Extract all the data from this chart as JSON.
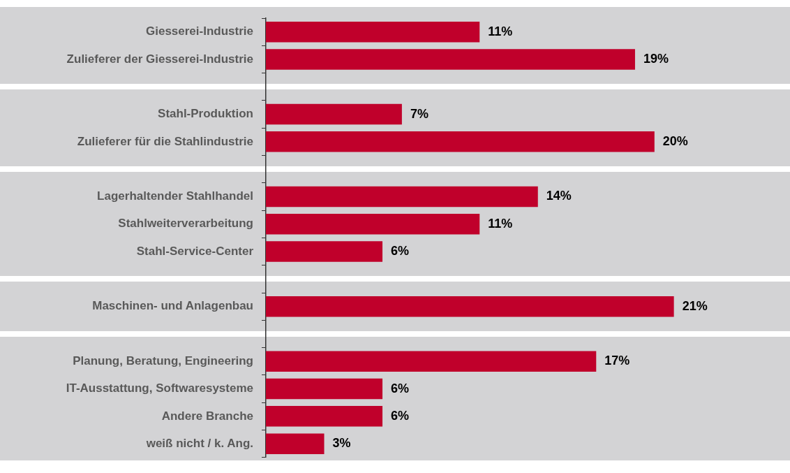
{
  "chart_data": {
    "type": "bar",
    "orientation": "horizontal",
    "categories": [
      "Giesserei-Industrie",
      "Zulieferer der Giesserei-Industrie",
      null,
      "Stahl-Produktion",
      "Zulieferer für die Stahlindustrie",
      null,
      "Lagerhaltender Stahlhandel",
      "Stahlweiterverarbeitung",
      "Stahl-Service-Center",
      null,
      "Maschinen- und Anlagenbau",
      null,
      "Planung, Beratung, Engineering",
      "IT-Ausstattung, Softwaresysteme",
      "Andere Branche",
      "weiß nicht / k. Ang."
    ],
    "values": [
      11,
      19,
      null,
      7,
      20,
      null,
      14,
      11,
      6,
      null,
      21,
      null,
      17,
      6,
      6,
      3
    ],
    "value_labels": [
      "11%",
      "19%",
      null,
      "7%",
      "20%",
      null,
      "14%",
      "11%",
      "6%",
      null,
      "21%",
      null,
      "17%",
      "6%",
      "6%",
      "3%"
    ],
    "color": "#c0002b",
    "tick_labels": "y"
  }
}
